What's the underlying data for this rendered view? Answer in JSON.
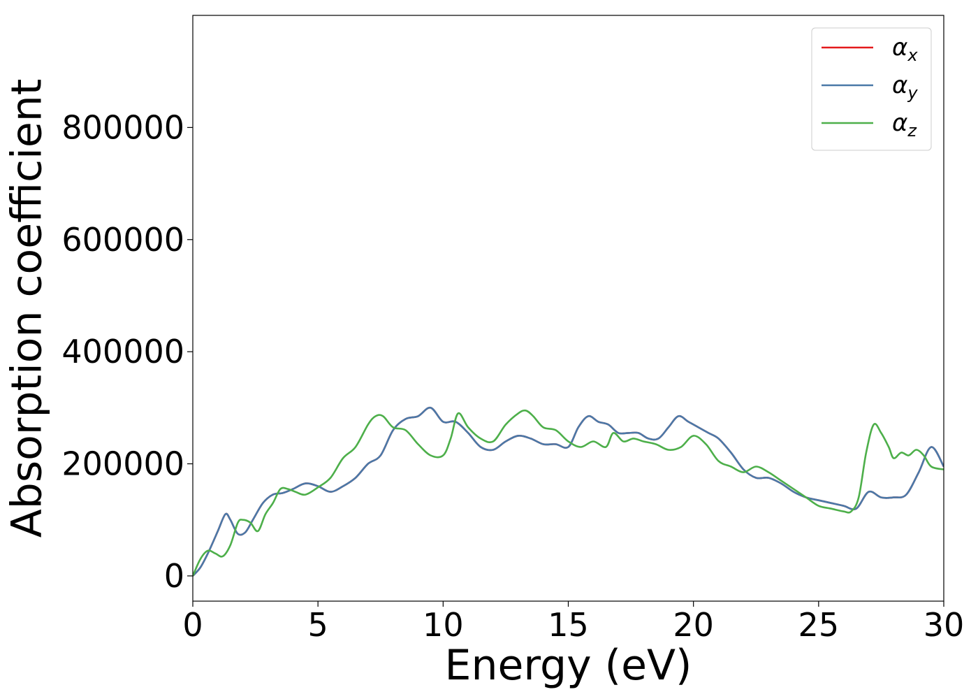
{
  "chart_data": {
    "type": "line",
    "title": "",
    "xlabel": "Energy (eV)",
    "ylabel": "Absorption coefficient",
    "xlim": [
      0,
      30
    ],
    "ylim": [
      -45000,
      1000000
    ],
    "xticks": [
      0,
      5,
      10,
      15,
      20,
      25,
      30
    ],
    "xtick_labels": [
      "0",
      "5",
      "10",
      "15",
      "20",
      "25",
      "30"
    ],
    "yticks": [
      0,
      200000,
      400000,
      600000,
      800000
    ],
    "ytick_labels": [
      "0",
      "200000",
      "400000",
      "600000",
      "800000"
    ],
    "grid": false,
    "legend_position": "top-right",
    "series": [
      {
        "name": "α",
        "subscript": "x",
        "color": "#e41a1c",
        "x": [
          0,
          0.3,
          0.6,
          1.0,
          1.3,
          1.5,
          1.8,
          2.1,
          2.4,
          2.8,
          3.2,
          3.6,
          4.0,
          4.5,
          5.0,
          5.5,
          6.0,
          6.5,
          7.0,
          7.5,
          8.0,
          8.5,
          9.0,
          9.5,
          10.0,
          10.5,
          11.0,
          11.5,
          12.0,
          12.5,
          13.0,
          13.5,
          14.0,
          14.5,
          15.0,
          15.4,
          15.8,
          16.2,
          16.6,
          17.0,
          17.4,
          17.8,
          18.2,
          18.6,
          19.0,
          19.4,
          19.8,
          20.2,
          20.6,
          21.0,
          21.5,
          22.0,
          22.5,
          23.0,
          23.5,
          24.0,
          24.5,
          25.0,
          25.5,
          26.0,
          26.5,
          27.0,
          27.5,
          28.0,
          28.5,
          29.0,
          29.5,
          30.0
        ],
        "values": [
          0,
          15000,
          40000,
          80000,
          110000,
          100000,
          75000,
          78000,
          100000,
          130000,
          145000,
          148000,
          155000,
          165000,
          160000,
          150000,
          160000,
          175000,
          200000,
          215000,
          260000,
          280000,
          285000,
          300000,
          275000,
          275000,
          255000,
          230000,
          225000,
          240000,
          250000,
          245000,
          235000,
          235000,
          230000,
          265000,
          285000,
          275000,
          270000,
          255000,
          255000,
          255000,
          245000,
          245000,
          265000,
          285000,
          275000,
          265000,
          255000,
          245000,
          220000,
          190000,
          175000,
          175000,
          165000,
          150000,
          140000,
          135000,
          130000,
          125000,
          120000,
          150000,
          140000,
          140000,
          145000,
          185000,
          230000,
          195000
        ]
      },
      {
        "name": "α",
        "subscript": "y",
        "color": "#4a79a8",
        "x": [
          0,
          0.3,
          0.6,
          1.0,
          1.3,
          1.5,
          1.8,
          2.1,
          2.4,
          2.8,
          3.2,
          3.6,
          4.0,
          4.5,
          5.0,
          5.5,
          6.0,
          6.5,
          7.0,
          7.5,
          8.0,
          8.5,
          9.0,
          9.5,
          10.0,
          10.5,
          11.0,
          11.5,
          12.0,
          12.5,
          13.0,
          13.5,
          14.0,
          14.5,
          15.0,
          15.4,
          15.8,
          16.2,
          16.6,
          17.0,
          17.4,
          17.8,
          18.2,
          18.6,
          19.0,
          19.4,
          19.8,
          20.2,
          20.6,
          21.0,
          21.5,
          22.0,
          22.5,
          23.0,
          23.5,
          24.0,
          24.5,
          25.0,
          25.5,
          26.0,
          26.5,
          27.0,
          27.5,
          28.0,
          28.5,
          29.0,
          29.5,
          30.0
        ],
        "values": [
          0,
          15000,
          40000,
          80000,
          110000,
          100000,
          75000,
          78000,
          100000,
          130000,
          145000,
          148000,
          155000,
          165000,
          160000,
          150000,
          160000,
          175000,
          200000,
          215000,
          260000,
          280000,
          285000,
          300000,
          275000,
          275000,
          255000,
          230000,
          225000,
          240000,
          250000,
          245000,
          235000,
          235000,
          230000,
          265000,
          285000,
          275000,
          270000,
          255000,
          255000,
          255000,
          245000,
          245000,
          265000,
          285000,
          275000,
          265000,
          255000,
          245000,
          220000,
          190000,
          175000,
          175000,
          165000,
          150000,
          140000,
          135000,
          130000,
          125000,
          120000,
          150000,
          140000,
          140000,
          145000,
          185000,
          230000,
          195000
        ]
      },
      {
        "name": "α",
        "subscript": "z",
        "color": "#4daf4a",
        "x": [
          0,
          0.3,
          0.6,
          0.9,
          1.2,
          1.5,
          1.8,
          2.0,
          2.3,
          2.6,
          2.9,
          3.2,
          3.5,
          3.8,
          4.1,
          4.5,
          5.0,
          5.5,
          6.0,
          6.5,
          7.0,
          7.3,
          7.6,
          8.0,
          8.5,
          9.0,
          9.5,
          10.0,
          10.3,
          10.6,
          11.0,
          11.5,
          12.0,
          12.5,
          13.0,
          13.3,
          13.6,
          14.0,
          14.5,
          15.0,
          15.5,
          16.0,
          16.5,
          16.8,
          17.2,
          17.6,
          18.0,
          18.5,
          19.0,
          19.5,
          20.0,
          20.5,
          21.0,
          21.5,
          22.0,
          22.5,
          23.0,
          23.5,
          24.0,
          24.5,
          25.0,
          25.5,
          26.0,
          26.3,
          26.6,
          26.9,
          27.2,
          27.5,
          27.8,
          28.0,
          28.3,
          28.6,
          28.9,
          29.2,
          29.5,
          30.0
        ],
        "values": [
          0,
          30000,
          45000,
          40000,
          35000,
          55000,
          95000,
          100000,
          95000,
          80000,
          110000,
          130000,
          155000,
          155000,
          150000,
          145000,
          158000,
          175000,
          210000,
          230000,
          270000,
          285000,
          285000,
          265000,
          260000,
          235000,
          215000,
          215000,
          245000,
          290000,
          265000,
          245000,
          240000,
          270000,
          290000,
          295000,
          285000,
          265000,
          260000,
          240000,
          230000,
          240000,
          230000,
          255000,
          240000,
          245000,
          240000,
          235000,
          225000,
          230000,
          250000,
          235000,
          205000,
          195000,
          185000,
          195000,
          185000,
          170000,
          155000,
          140000,
          125000,
          120000,
          115000,
          115000,
          140000,
          220000,
          270000,
          255000,
          230000,
          210000,
          220000,
          215000,
          225000,
          215000,
          195000,
          190000
        ]
      }
    ]
  }
}
